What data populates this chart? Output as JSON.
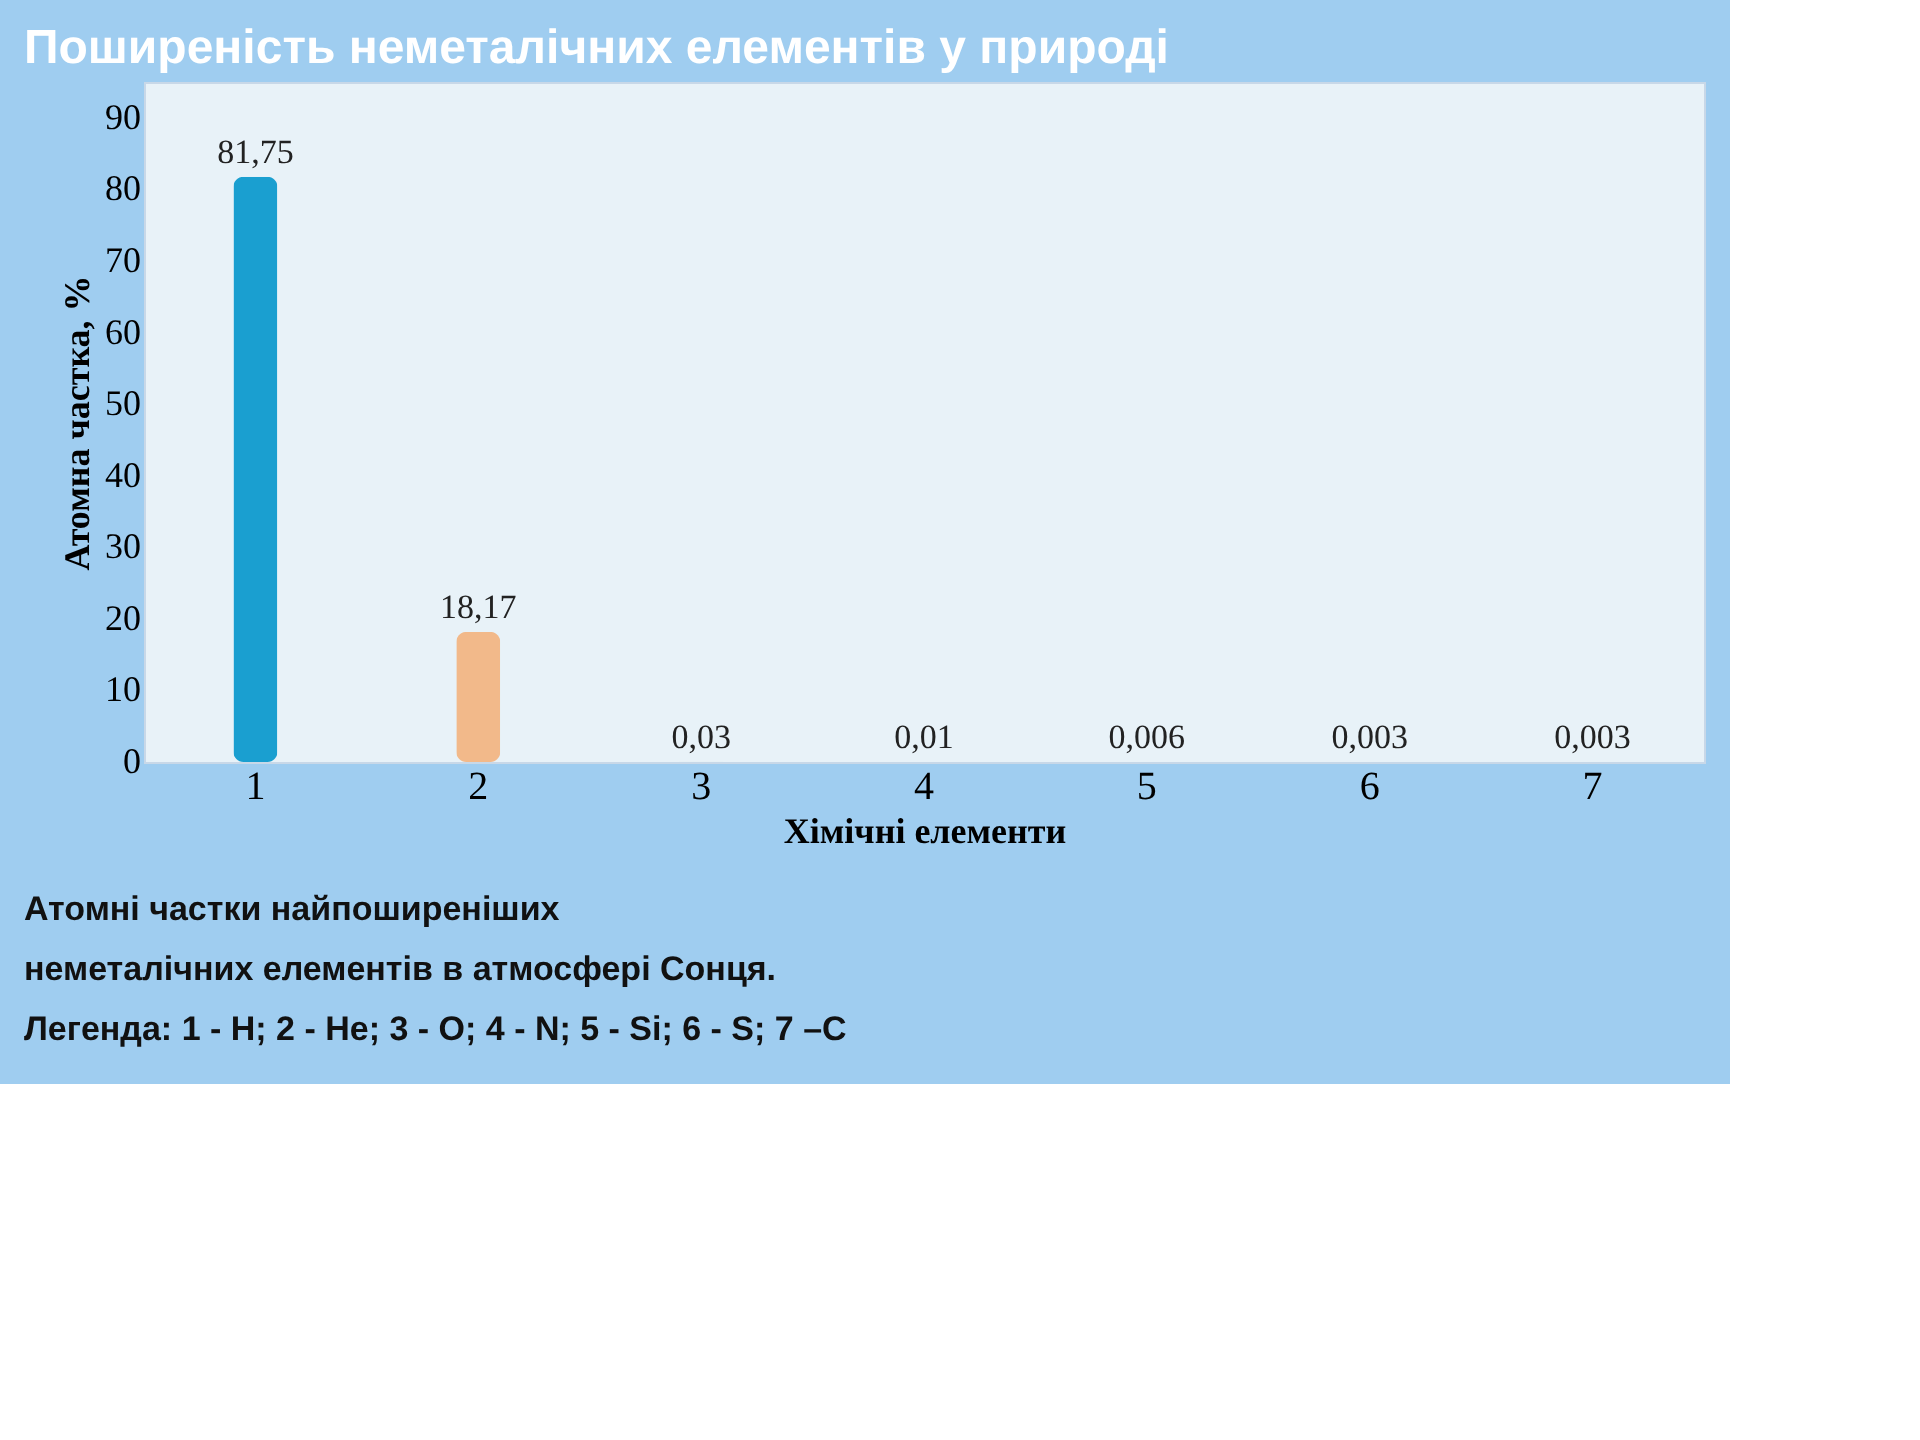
{
  "chart_data": {
    "type": "bar",
    "title": "Поширеність неметалічних елементів у природі",
    "xlabel": "Хімічні елементи",
    "ylabel": "Атомна частка, %",
    "categories": [
      "1",
      "2",
      "3",
      "4",
      "5",
      "6",
      "7"
    ],
    "values": [
      81.75,
      18.17,
      0.03,
      0.01,
      0.006,
      0.003,
      0.003
    ],
    "value_labels": [
      "81,75",
      "18,17",
      "0,03",
      "0,01",
      "0,006",
      "0,003",
      "0,003"
    ],
    "colors": [
      "#1a9fd0",
      "#f2b98a",
      "#7aa86a",
      "#1a3a8a",
      "#6a9a50",
      "#5a7ab0",
      "#20a090"
    ],
    "ylim": [
      0,
      95
    ],
    "yticks": [
      0,
      10,
      20,
      30,
      40,
      50,
      60,
      70,
      80,
      90
    ],
    "grid": false,
    "annotations": [
      "Атомні частки найпоширеніших",
      "неметалічних елементів  в атмосфері Сонця.",
      "Легенда: 1 - H; 2 - He; 3 - O; 4 - N; 5 - Si; 6 - S; 7 –C"
    ]
  }
}
